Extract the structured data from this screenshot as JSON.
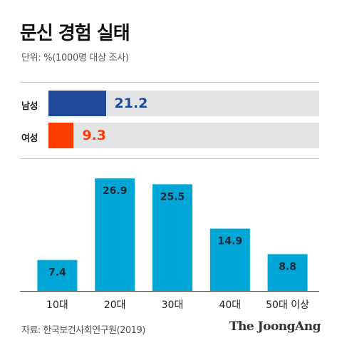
{
  "title": "문신 경험 실태",
  "unit_note": "단위: %(1000명 대상 조사)",
  "colors": {
    "male": "#1f4a9a",
    "female": "#ff3d00",
    "age_bars": "#00a6d6",
    "track": "#e3e4e6"
  },
  "source": "자료: 한국보건사회연구원(2019)",
  "brand": "The JoongAng",
  "chart_data": [
    {
      "type": "bar",
      "orientation": "horizontal",
      "categories": [
        "남성",
        "여성"
      ],
      "values": [
        21.2,
        9.3
      ],
      "value_labels": [
        "21.2",
        "9.3"
      ],
      "xlim": [
        0,
        100
      ]
    },
    {
      "type": "bar",
      "categories": [
        "10대",
        "20대",
        "30대",
        "40대",
        "50대 이상"
      ],
      "values": [
        7.4,
        26.9,
        25.5,
        14.9,
        8.8
      ],
      "value_labels": [
        "7.4",
        "26.9",
        "25.5",
        "14.9",
        "8.8"
      ],
      "ylim": [
        0,
        30
      ]
    }
  ]
}
